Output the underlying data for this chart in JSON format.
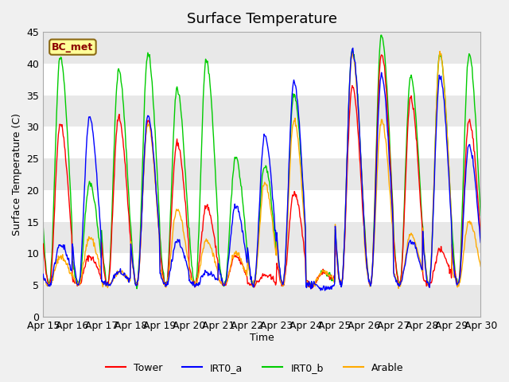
{
  "title": "Surface Temperature",
  "ylabel": "Surface Temperature (C)",
  "xlabel": "Time",
  "ylim": [
    0,
    45
  ],
  "series_names": [
    "Tower",
    "IRT0_a",
    "IRT0_b",
    "Arable"
  ],
  "series_colors": [
    "#ff0000",
    "#0000ff",
    "#00cc00",
    "#ffaa00"
  ],
  "bc_met_label": "BC_met",
  "x_tick_labels": [
    "Apr 15",
    "Apr 16",
    "Apr 17",
    "Apr 18",
    "Apr 19",
    "Apr 20",
    "Apr 21",
    "Apr 22",
    "Apr 23",
    "Apr 24",
    "Apr 25",
    "Apr 26",
    "Apr 27",
    "Apr 28",
    "Apr 29",
    "Apr 30"
  ],
  "background_color": "#f0f0f0",
  "plot_bg_color": "#e8e8e8",
  "n_days": 15,
  "pts_per_day": 48,
  "tower_peaks": [
    30.5,
    9.5,
    31.5,
    31.0,
    27.5,
    17.5,
    9.5,
    6.5,
    19.5,
    7.0,
    36.5,
    41.5,
    34.5,
    10.5,
    31.0
  ],
  "irt0b_peaks": [
    41.0,
    21.0,
    39.0,
    41.5,
    36.0,
    40.5,
    25.0,
    24.0,
    35.0,
    7.0,
    42.0,
    44.5,
    38.0,
    41.5,
    41.5
  ],
  "irt0a_peaks": [
    11.5,
    31.5,
    7.0,
    31.5,
    12.0,
    7.0,
    17.5,
    28.5,
    37.0,
    4.5,
    42.0,
    38.0,
    12.0,
    38.0,
    27.0
  ],
  "arable_peaks": [
    9.5,
    12.5,
    7.0,
    30.5,
    17.0,
    12.0,
    10.0,
    21.0,
    31.0,
    7.0,
    41.5,
    31.0,
    13.0,
    41.5,
    15.0
  ],
  "night_min": 5.0,
  "peak_hour": 14,
  "trough_hour": 5
}
